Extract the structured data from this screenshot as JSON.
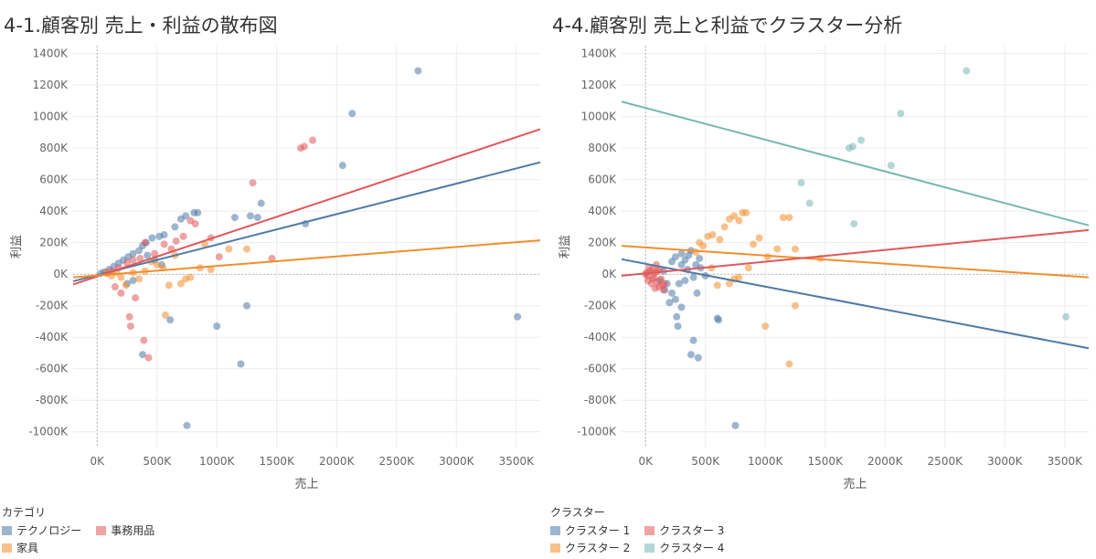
{
  "chart_data": [
    {
      "type": "scatter",
      "title": "4-1.顧客別 売上・利益の散布図",
      "xlabel": "売上",
      "ylabel": "利益",
      "xlim": [
        -200,
        3700
      ],
      "ylim": [
        -1100,
        1450
      ],
      "x_ticks": [
        "0K",
        "500K",
        "1000K",
        "1500K",
        "2000K",
        "2500K",
        "3000K",
        "3500K"
      ],
      "y_ticks": [
        "1400K",
        "1200K",
        "1000K",
        "800K",
        "600K",
        "400K",
        "200K",
        "0K",
        "-200K",
        "-400K",
        "-600K",
        "-800K",
        "-1000K"
      ],
      "legend": {
        "title": "カテゴリ",
        "items": [
          {
            "label": "テクノロジー",
            "color": "#4e79a7"
          },
          {
            "label": "事務用品",
            "color": "#e15759"
          },
          {
            "label": "家具",
            "color": "#f28e2b"
          }
        ]
      },
      "series": [
        {
          "name": "テクノロジー",
          "color": "#4e79a7",
          "points": [
            [
              2680,
              1290
            ],
            [
              2130,
              1020
            ],
            [
              2050,
              690
            ],
            [
              1740,
              320
            ],
            [
              1370,
              450
            ],
            [
              1340,
              360
            ],
            [
              1280,
              370
            ],
            [
              1150,
              360
            ],
            [
              1250,
              -200
            ],
            [
              1200,
              -570
            ],
            [
              1000,
              -330
            ],
            [
              750,
              -960
            ],
            [
              3510,
              -270
            ],
            [
              380,
              -510
            ],
            [
              610,
              -290
            ],
            [
              840,
              390
            ],
            [
              810,
              390
            ],
            [
              740,
              370
            ],
            [
              700,
              350
            ],
            [
              650,
              300
            ],
            [
              560,
              250
            ],
            [
              520,
              240
            ],
            [
              460,
              230
            ],
            [
              410,
              200
            ],
            [
              380,
              180
            ],
            [
              420,
              120
            ],
            [
              350,
              150
            ],
            [
              300,
              130
            ],
            [
              260,
              110
            ],
            [
              220,
              90
            ],
            [
              180,
              70
            ],
            [
              140,
              50
            ],
            [
              100,
              30
            ],
            [
              60,
              15
            ],
            [
              30,
              5
            ],
            [
              480,
              90
            ],
            [
              540,
              60
            ],
            [
              300,
              -40
            ],
            [
              250,
              -60
            ]
          ],
          "trend": [
            [
              -200,
              -45
            ],
            [
              3700,
              710
            ]
          ]
        },
        {
          "name": "事務用品",
          "color": "#e15759",
          "points": [
            [
              1800,
              850
            ],
            [
              1730,
              810
            ],
            [
              1700,
              800
            ],
            [
              1300,
              580
            ],
            [
              1460,
              100
            ],
            [
              1020,
              110
            ],
            [
              950,
              230
            ],
            [
              820,
              320
            ],
            [
              780,
              340
            ],
            [
              720,
              240
            ],
            [
              660,
              210
            ],
            [
              620,
              160
            ],
            [
              560,
              190
            ],
            [
              480,
              130
            ],
            [
              400,
              200
            ],
            [
              390,
              -420
            ],
            [
              430,
              -530
            ],
            [
              280,
              -330
            ],
            [
              270,
              -270
            ],
            [
              320,
              -150
            ],
            [
              200,
              -120
            ],
            [
              150,
              -80
            ],
            [
              360,
              100
            ],
            [
              300,
              90
            ],
            [
              250,
              70
            ],
            [
              180,
              40
            ],
            [
              120,
              20
            ],
            [
              80,
              10
            ]
          ],
          "trend": [
            [
              -200,
              -65
            ],
            [
              3700,
              920
            ]
          ]
        },
        {
          "name": "家具",
          "color": "#f28e2b",
          "points": [
            [
              1250,
              160
            ],
            [
              1100,
              160
            ],
            [
              950,
              30
            ],
            [
              900,
              190
            ],
            [
              860,
              40
            ],
            [
              780,
              -20
            ],
            [
              740,
              -30
            ],
            [
              700,
              -60
            ],
            [
              650,
              120
            ],
            [
              600,
              -70
            ],
            [
              570,
              -260
            ],
            [
              550,
              40
            ],
            [
              500,
              60
            ],
            [
              450,
              80
            ],
            [
              400,
              20
            ],
            [
              350,
              -30
            ],
            [
              300,
              10
            ],
            [
              240,
              -70
            ],
            [
              200,
              -20
            ],
            [
              160,
              10
            ],
            [
              120,
              -10
            ],
            [
              80,
              5
            ]
          ],
          "trend": [
            [
              -200,
              -20
            ],
            [
              3700,
              215
            ]
          ]
        }
      ]
    },
    {
      "type": "scatter",
      "title": "4-4.顧客別 売上と利益でクラスター分析",
      "xlabel": "売上",
      "ylabel": "利益",
      "xlim": [
        -200,
        3700
      ],
      "ylim": [
        -1100,
        1450
      ],
      "x_ticks": [
        "0K",
        "500K",
        "1000K",
        "1500K",
        "2000K",
        "2500K",
        "3000K",
        "3500K"
      ],
      "y_ticks": [
        "1400K",
        "1200K",
        "1000K",
        "800K",
        "600K",
        "400K",
        "200K",
        "0K",
        "-200K",
        "-400K",
        "-600K",
        "-800K",
        "-1000K"
      ],
      "legend": {
        "title": "クラスター",
        "items": [
          {
            "label": "クラスター 1",
            "color": "#4e79a7"
          },
          {
            "label": "クラスター 3",
            "color": "#e15759"
          },
          {
            "label": "クラスター 2",
            "color": "#f28e2b"
          },
          {
            "label": "クラスター 4",
            "color": "#76b7b2"
          }
        ]
      },
      "series": [
        {
          "name": "クラスター 1",
          "color": "#4e79a7",
          "points": [
            [
              450,
              100
            ],
            [
              420,
              60
            ],
            [
              400,
              -20
            ],
            [
              380,
              150
            ],
            [
              360,
              120
            ],
            [
              330,
              90
            ],
            [
              300,
              60
            ],
            [
              280,
              -60
            ],
            [
              250,
              -160
            ],
            [
              220,
              -120
            ],
            [
              200,
              -180
            ],
            [
              180,
              -60
            ],
            [
              160,
              -100
            ],
            [
              300,
              -210
            ],
            [
              260,
              -270
            ],
            [
              270,
              -330
            ],
            [
              400,
              -420
            ],
            [
              380,
              -510
            ],
            [
              440,
              -530
            ],
            [
              610,
              -290
            ],
            [
              600,
              -280
            ],
            [
              750,
              -960
            ],
            [
              350,
              30
            ],
            [
              330,
              -40
            ],
            [
              300,
              130
            ],
            [
              250,
              110
            ],
            [
              220,
              80
            ],
            [
              150,
              20
            ],
            [
              120,
              -40
            ],
            [
              460,
              40
            ],
            [
              500,
              -10
            ],
            [
              430,
              -120
            ]
          ],
          "trend": [
            [
              -200,
              95
            ],
            [
              3700,
              -470
            ]
          ]
        },
        {
          "name": "クラスター 2",
          "color": "#f28e2b",
          "points": [
            [
              840,
              390
            ],
            [
              810,
              390
            ],
            [
              780,
              340
            ],
            [
              740,
              370
            ],
            [
              700,
              350
            ],
            [
              660,
              300
            ],
            [
              620,
              220
            ],
            [
              560,
              250
            ],
            [
              520,
              240
            ],
            [
              480,
              180
            ],
            [
              450,
              200
            ],
            [
              420,
              140
            ],
            [
              950,
              230
            ],
            [
              900,
              190
            ],
            [
              1020,
              110
            ],
            [
              1100,
              160
            ],
            [
              1150,
              360
            ],
            [
              1200,
              360
            ],
            [
              1250,
              160
            ],
            [
              1460,
              100
            ],
            [
              1000,
              -330
            ],
            [
              1200,
              -570
            ],
            [
              1250,
              -200
            ],
            [
              860,
              40
            ],
            [
              780,
              -20
            ],
            [
              740,
              -30
            ],
            [
              700,
              -60
            ],
            [
              600,
              -70
            ],
            [
              550,
              40
            ]
          ],
          "trend": [
            [
              -200,
              180
            ],
            [
              3700,
              -20
            ]
          ]
        },
        {
          "name": "クラスター 3",
          "color": "#e15759",
          "points": [
            [
              0,
              0
            ],
            [
              20,
              -10
            ],
            [
              40,
              20
            ],
            [
              60,
              -30
            ],
            [
              80,
              10
            ],
            [
              100,
              -50
            ],
            [
              120,
              30
            ],
            [
              140,
              -70
            ],
            [
              50,
              -60
            ],
            [
              30,
              40
            ],
            [
              90,
              60
            ],
            [
              110,
              -80
            ],
            [
              70,
              -20
            ],
            [
              10,
              10
            ],
            [
              130,
              -30
            ],
            [
              150,
              -100
            ],
            [
              160,
              -60
            ],
            [
              60,
              30
            ],
            [
              20,
              -40
            ],
            [
              100,
              20
            ],
            [
              80,
              -90
            ]
          ],
          "trend": [
            [
              -200,
              -10
            ],
            [
              3700,
              280
            ]
          ]
        },
        {
          "name": "クラスター 4",
          "color": "#76b7b2",
          "points": [
            [
              2680,
              1290
            ],
            [
              2130,
              1020
            ],
            [
              2050,
              690
            ],
            [
              1800,
              850
            ],
            [
              1730,
              810
            ],
            [
              1700,
              800
            ],
            [
              1740,
              320
            ],
            [
              1300,
              580
            ],
            [
              1370,
              450
            ],
            [
              3510,
              -270
            ]
          ],
          "trend": [
            [
              -200,
              1095
            ],
            [
              3700,
              310
            ]
          ]
        }
      ]
    }
  ]
}
